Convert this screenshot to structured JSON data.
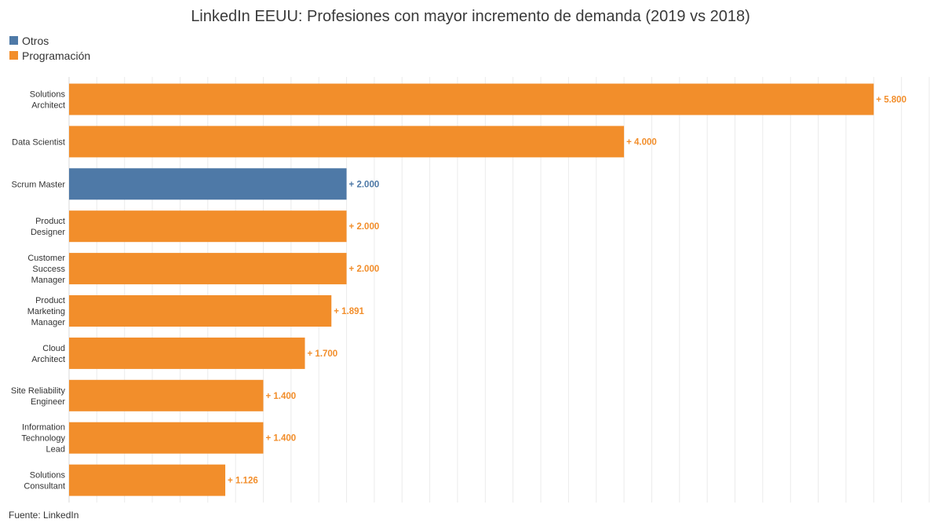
{
  "colors": {
    "Otros": "#4e79a7",
    "Programación": "#f28e2b"
  },
  "chart_data": {
    "type": "bar",
    "orientation": "horizontal",
    "title": "LinkedIn EEUU: Profesiones con mayor incremento de demanda (2019 vs 2018)",
    "legend": {
      "position": "top-left",
      "entries": [
        "Otros",
        "Programación"
      ]
    },
    "categories": [
      [
        "Solutions",
        "Architect"
      ],
      [
        "Data Scientist"
      ],
      [
        "Scrum Master"
      ],
      [
        "Product",
        "Designer"
      ],
      [
        "Customer",
        "Success",
        "Manager"
      ],
      [
        "Product",
        "Marketing",
        "Manager"
      ],
      [
        "Cloud",
        "Architect"
      ],
      [
        "Site Reliability",
        "Engineer"
      ],
      [
        "Information",
        "Technology",
        "Lead"
      ],
      [
        "Solutions",
        "Consultant"
      ]
    ],
    "values": [
      5800,
      4000,
      2000,
      2000,
      2000,
      1891,
      1700,
      1400,
      1400,
      1126
    ],
    "value_labels": [
      "+ 5.800",
      "+ 4.000",
      "+ 2.000",
      "+ 2.000",
      "+ 2.000",
      "+ 1.891",
      "+ 1.700",
      "+ 1.400",
      "+ 1.400",
      "+ 1.126"
    ],
    "groups": [
      "Programación",
      "Programación",
      "Otros",
      "Programación",
      "Programación",
      "Programación",
      "Programación",
      "Programación",
      "Programación",
      "Programación"
    ],
    "xlim": [
      0,
      6200
    ],
    "grid_step": 200,
    "grid": true
  },
  "source": "Fuente: LinkedIn"
}
